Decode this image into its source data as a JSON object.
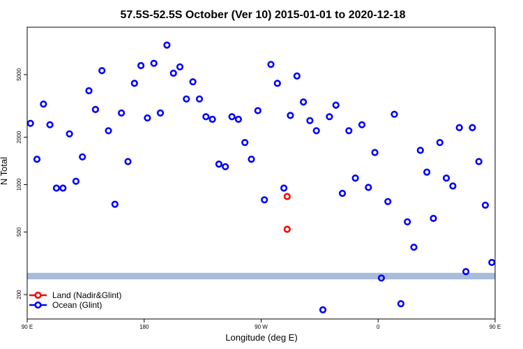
{
  "chart_data": {
    "type": "scatter",
    "title": "57.5S-52.5S October (Ver 10)   2015-01-01 to 2020-12-18",
    "xlabel": "Longitude (deg E)",
    "ylabel": "N Total",
    "xlim": [
      90,
      450
    ],
    "ylim": [
      140,
      10000
    ],
    "y_scale": "log",
    "x_ticks": [
      {
        "value": 90,
        "label": "90 E"
      },
      {
        "value": 180,
        "label": "180"
      },
      {
        "value": 270,
        "label": "90 W"
      },
      {
        "value": 360,
        "label": "0"
      },
      {
        "value": 450,
        "label": "90 E"
      }
    ],
    "y_ticks": [
      {
        "value": 200,
        "label": "200"
      },
      {
        "value": 500,
        "label": "500"
      },
      {
        "value": 1000,
        "label": "1000"
      },
      {
        "value": 2000,
        "label": "2000"
      },
      {
        "value": 5000,
        "label": "5000"
      }
    ],
    "band": {
      "y_min": 250,
      "y_max": 275,
      "color": "#a8bcdc"
    },
    "legend_position": "bottom-left",
    "colors": {
      "land": "#ff0000",
      "ocean": "#0000ff"
    },
    "series": [
      {
        "name": "Land (Nadir&Glint)",
        "color": "#ff0000",
        "x": [
          290,
          290
        ],
        "y": [
          840,
          520
        ]
      },
      {
        "name": "Ocean (Glint)",
        "color": "#0000ff",
        "x": [
          92.5,
          97.5,
          102.5,
          107.5,
          112.5,
          117.5,
          122.5,
          127.5,
          132.5,
          137.5,
          142.5,
          147.5,
          152.5,
          157.5,
          162.5,
          167.5,
          172.5,
          177.5,
          182.5,
          187.5,
          192.5,
          197.5,
          202.5,
          207.5,
          212.5,
          217.5,
          222.5,
          227.5,
          232.5,
          237.5,
          242.5,
          247.5,
          252.5,
          257.5,
          262.5,
          267.5,
          272.5,
          277.5,
          282.5,
          287.5,
          292.5,
          297.5,
          302.5,
          307.5,
          312.5,
          317.5,
          322.5,
          327.5,
          332.5,
          337.5,
          342.5,
          347.5,
          352.5,
          357.5,
          362.5,
          367.5,
          372.5,
          377.5,
          382.5,
          387.5,
          392.5,
          397.5,
          402.5,
          407.5,
          412.5,
          417.5,
          422.5,
          427.5,
          432.5,
          437.5,
          442.5,
          447.5
        ],
        "y": [
          2450,
          1450,
          3250,
          2400,
          950,
          950,
          2100,
          1050,
          1500,
          3950,
          3000,
          5300,
          2200,
          750,
          2850,
          1400,
          4400,
          5700,
          2650,
          5900,
          2850,
          7700,
          5100,
          5600,
          3500,
          4500,
          3500,
          2700,
          2600,
          1350,
          1300,
          2700,
          2600,
          1850,
          1450,
          2950,
          800,
          5800,
          4400,
          950,
          2750,
          4900,
          3350,
          2550,
          2200,
          160,
          2700,
          3200,
          880,
          2200,
          1100,
          2400,
          960,
          1600,
          255,
          780,
          2800,
          175,
          580,
          400,
          1650,
          1200,
          610,
          1850,
          1100,
          980,
          2300,
          280,
          2300,
          1400,
          740,
          320
        ]
      }
    ]
  }
}
